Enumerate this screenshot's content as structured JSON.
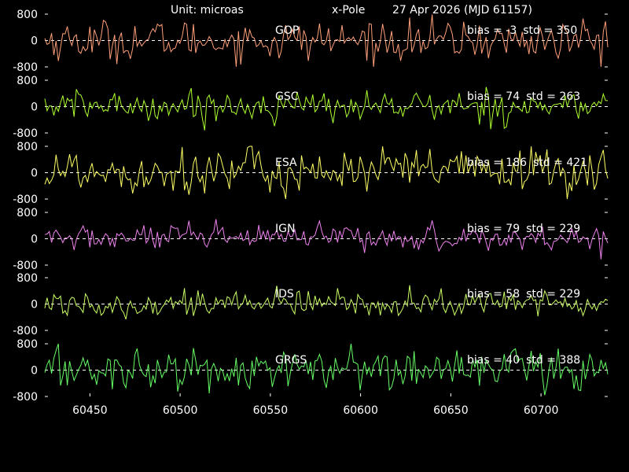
{
  "header": {
    "unit": "Unit: microas",
    "component": "x-Pole",
    "date": "27 Apr 2026  (MJD 61157)"
  },
  "chart_data": {
    "type": "line",
    "xlim": [
      60425,
      60737
    ],
    "ylim": [
      -800,
      800
    ],
    "x_ticks": [
      60450,
      60500,
      60550,
      60600,
      60650,
      60700
    ],
    "y_ticks": [
      -800,
      0,
      800
    ],
    "y_tick_labels": [
      "-800",
      "0",
      "800"
    ],
    "zero_line": "dashed",
    "grid": false,
    "series": [
      {
        "name": "GOP",
        "bias": -3,
        "std": 350,
        "bias_label": "bias = -3",
        "std_label": "std = 350",
        "color": "#ffa07a"
      },
      {
        "name": "GSC",
        "bias": 74,
        "std": 263,
        "bias_label": "bias = 74",
        "std_label": "std = 263",
        "color": "#adff2f"
      },
      {
        "name": "ESA",
        "bias": 186,
        "std": 421,
        "bias_label": "bias = 186",
        "std_label": "std = 421",
        "color": "#ffff66"
      },
      {
        "name": "IGN",
        "bias": 79,
        "std": 229,
        "bias_label": "bias = 79",
        "std_label": "std = 229",
        "color": "#ee82ee"
      },
      {
        "name": "IDS",
        "bias": 58,
        "std": 229,
        "bias_label": "bias = 58",
        "std_label": "std = 229",
        "color": "#ccff66"
      },
      {
        "name": "GRGS",
        "bias": 40,
        "std": 388,
        "bias_label": "bias = 40",
        "std_label": "std = 388",
        "color": "#66ff66"
      }
    ]
  }
}
